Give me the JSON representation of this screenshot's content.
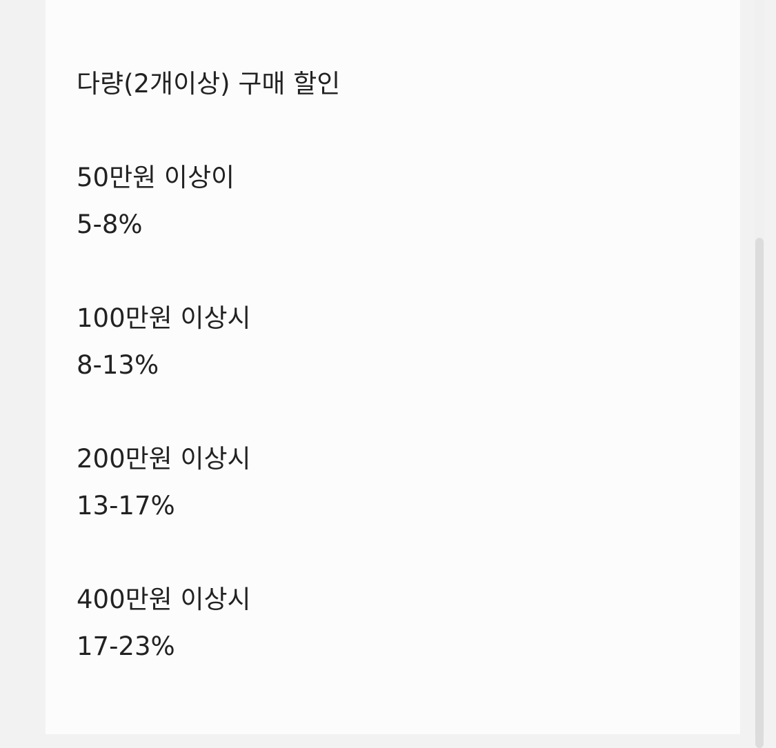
{
  "title": "다량(2개이상) 구매 할인",
  "tiers": [
    {
      "threshold": "50만원 이상이",
      "discount": "5-8%"
    },
    {
      "threshold": "100만원 이상시",
      "discount": "8-13%"
    },
    {
      "threshold": "200만원 이상시",
      "discount": "13-17%"
    },
    {
      "threshold": "400만원 이상시",
      "discount": "17-23%"
    }
  ],
  "colors": {
    "background": "#f2f2f2",
    "card": "#fcfcfc",
    "text": "#222222",
    "scrollbar_thumb": "#dcdcdc"
  }
}
